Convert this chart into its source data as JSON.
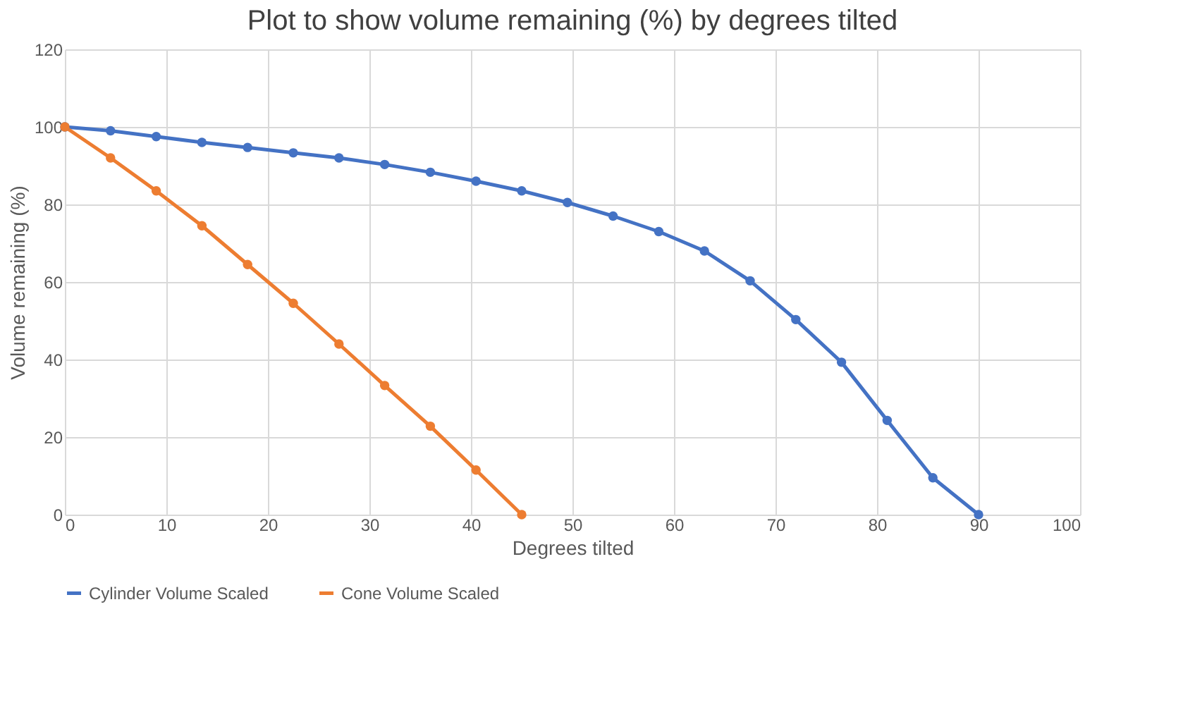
{
  "chart_data": {
    "type": "line",
    "title": "Plot to show volume remaining (%) by degrees tilted",
    "xlabel": "Degrees tilted",
    "ylabel": "Volume remaining (%)",
    "xlim": [
      0,
      100
    ],
    "xticks": [
      0,
      10,
      20,
      30,
      40,
      50,
      60,
      70,
      80,
      90,
      100
    ],
    "ylim": [
      0,
      120
    ],
    "yticks": [
      0,
      20,
      40,
      60,
      80,
      100,
      120
    ],
    "grid": true,
    "legend": "bottom",
    "marker": "circle",
    "line_style": "solid",
    "series": [
      {
        "name": "Cylinder Volume Scaled",
        "color": "#4472c4",
        "x": [
          0,
          4.5,
          9,
          13.5,
          18,
          22.5,
          27,
          31.5,
          36,
          40.5,
          45,
          49.5,
          54,
          58.5,
          63,
          67.5,
          72,
          76.5,
          81,
          85.5,
          90
        ],
        "values": [
          100,
          99,
          97.5,
          96,
          94.7,
          93.3,
          92,
          90.3,
          88.3,
          86,
          83.5,
          80.5,
          77,
          73,
          68,
          60.3,
          50.3,
          39.3,
          24.3,
          9.5,
          0
        ]
      },
      {
        "name": "Cone Volume Scaled",
        "color": "#ed7d31",
        "x": [
          0,
          4.5,
          9,
          13.5,
          18,
          22.5,
          27,
          31.5,
          36,
          40.5,
          45
        ],
        "values": [
          100,
          92,
          83.5,
          74.5,
          64.5,
          54.5,
          44,
          33.3,
          22.8,
          11.5,
          0
        ]
      }
    ]
  }
}
